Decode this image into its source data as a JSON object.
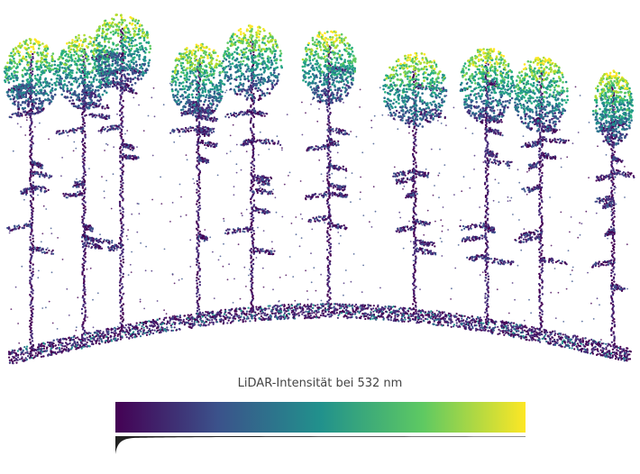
{
  "colorbar": {
    "title": "LiDAR-Intensität bei 532 nm",
    "colormap": [
      "#440154",
      "#3b528b",
      "#21918c",
      "#5ec962",
      "#fde725"
    ]
  },
  "colors": {
    "low_intensity": "#440154",
    "mid_intensity": "#21918c",
    "high_intensity": "#fde725"
  }
}
